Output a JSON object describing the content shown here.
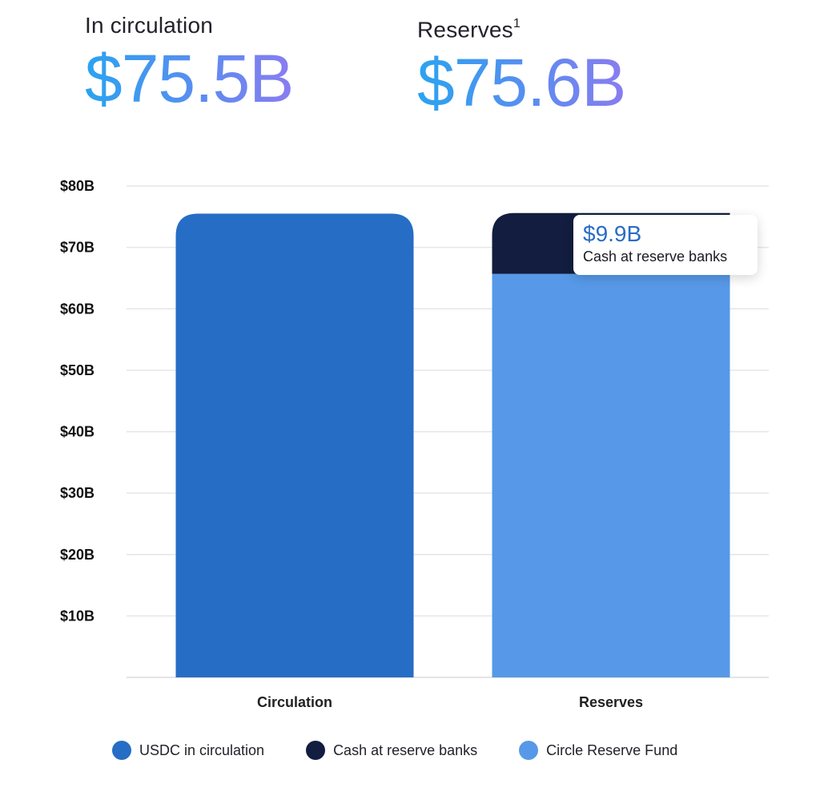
{
  "stats": {
    "circulation": {
      "label": "In circulation",
      "value": "$75.5B"
    },
    "reserves": {
      "label": "Reserves",
      "footnote": "1",
      "value": "$75.6B"
    }
  },
  "tooltip": {
    "value": "$9.9B",
    "label": "Cash at reserve banks"
  },
  "colors": {
    "usdc": "#266dc5",
    "cash": "#121d3f",
    "fund": "#5799e8",
    "grid": "#e6e6e6"
  },
  "chart_data": {
    "type": "bar",
    "stacked": true,
    "categories": [
      "Circulation",
      "Reserves"
    ],
    "ylim": [
      0,
      80
    ],
    "yticks": [
      10,
      20,
      30,
      40,
      50,
      60,
      70,
      80
    ],
    "ytick_labels": [
      "$10B",
      "$20B",
      "$30B",
      "$40B",
      "$50B",
      "$60B",
      "$70B",
      "$80B"
    ],
    "grid": true,
    "legend_placement": "bottom",
    "series": [
      {
        "name": "USDC in circulation",
        "values": [
          75.5,
          0
        ],
        "color": "#266dc5"
      },
      {
        "name": "Circle Reserve Fund",
        "values": [
          0,
          65.7
        ],
        "color": "#5799e8"
      },
      {
        "name": "Cash at reserve banks",
        "values": [
          0,
          9.9
        ],
        "color": "#121d3f"
      }
    ],
    "legend": [
      "USDC in circulation",
      "Cash at reserve banks",
      "Circle Reserve Fund"
    ]
  }
}
